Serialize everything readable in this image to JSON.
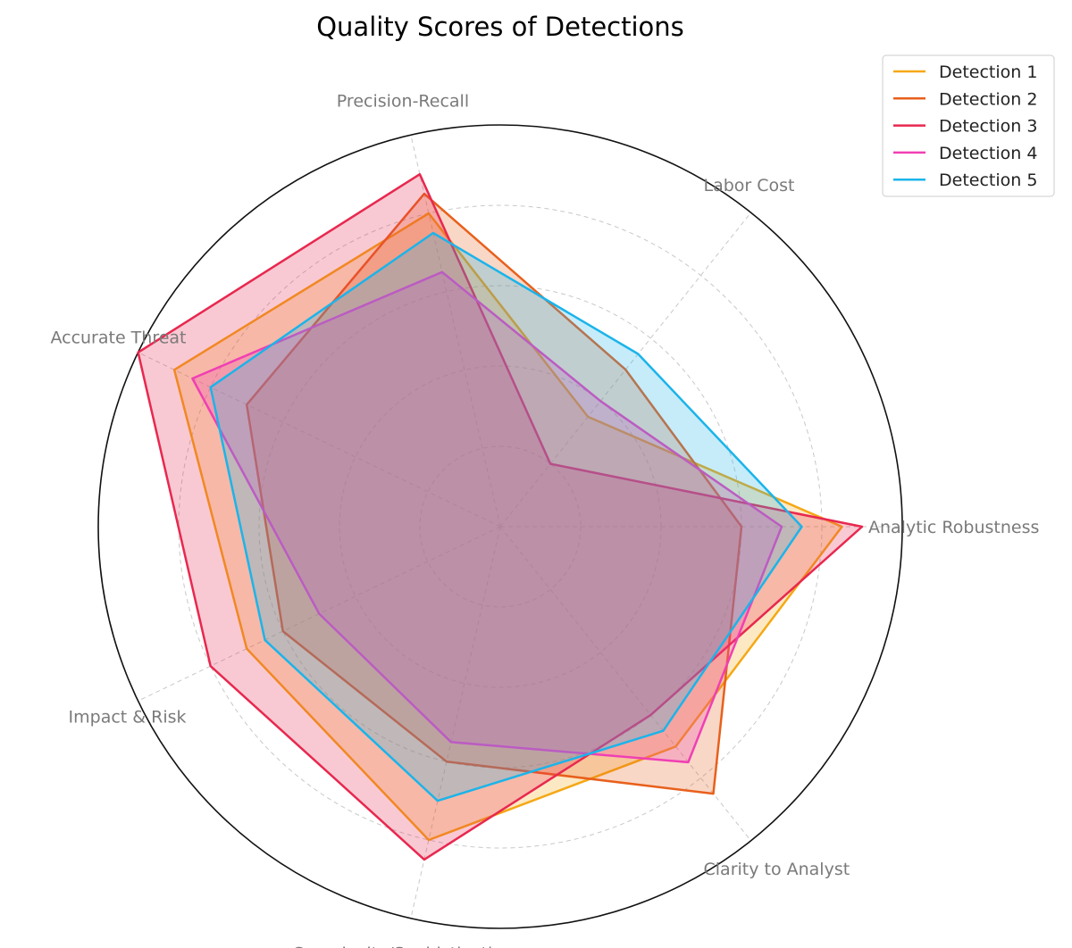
{
  "chart_data": {
    "type": "radar",
    "title": "Quality Scores of Detections",
    "axes": [
      "Analytic Robustness",
      "Labor Cost",
      "Precision-Recall",
      "Accurate Threat",
      "Impact & Risk",
      "Complexity/Sophistication",
      "Clarity to Analyst"
    ],
    "rmax": 10,
    "rings": [
      2,
      4,
      6,
      8,
      10
    ],
    "grid": true,
    "legend_position": "top-right",
    "series": [
      {
        "name": "Detection 1",
        "color": "#f5a815",
        "values": [
          8.5,
          3.5,
          8.0,
          9.0,
          7.0,
          8.0,
          7.0
        ]
      },
      {
        "name": "Detection 2",
        "color": "#e8601c",
        "values": [
          6.0,
          5.0,
          8.5,
          7.0,
          6.0,
          6.0,
          8.5
        ]
      },
      {
        "name": "Detection 3",
        "color": "#e8284f",
        "values": [
          9.0,
          2.0,
          9.0,
          10.0,
          8.0,
          8.5,
          6.0
        ]
      },
      {
        "name": "Detection 4",
        "color": "#f03fb4",
        "values": [
          7.0,
          4.0,
          6.5,
          8.5,
          5.0,
          5.5,
          7.5
        ]
      },
      {
        "name": "Detection 5",
        "color": "#1bb4ea",
        "values": [
          7.5,
          5.5,
          7.5,
          8.0,
          6.5,
          7.0,
          6.5
        ]
      }
    ]
  }
}
